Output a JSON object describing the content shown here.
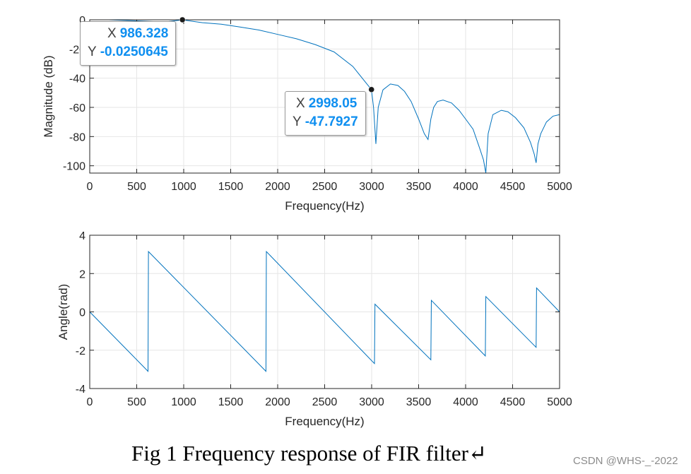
{
  "chart_data": [
    {
      "type": "line",
      "xlabel": "Frequency(Hz)",
      "ylabel": "Magnitude (dB)",
      "xlim": [
        0,
        5000
      ],
      "ylim": [
        -105,
        0
      ],
      "xticks": [
        "0",
        "500",
        "1000",
        "1500",
        "2000",
        "2500",
        "3000",
        "3500",
        "4000",
        "4500",
        "5000"
      ],
      "yticks": [
        "0",
        "-20",
        "-40",
        "-60",
        "-80",
        "-100"
      ],
      "grid": true,
      "color": "#0072bd",
      "series": [
        {
          "x": [
            0,
            200,
            400,
            600,
            800,
            986.328,
            1200,
            1400,
            1600,
            1800,
            2000,
            2200,
            2400,
            2600,
            2800,
            2998.05,
            3020,
            3045,
            3070,
            3120,
            3200,
            3280,
            3350,
            3420,
            3500,
            3560,
            3600,
            3630,
            3660,
            3700,
            3760,
            3850,
            3930,
            4000,
            4080,
            4150,
            4190,
            4215,
            4240,
            4290,
            4380,
            4450,
            4530,
            4620,
            4690,
            4730,
            4750,
            4770,
            4800,
            4860,
            4930,
            5000
          ],
          "y": [
            0,
            0,
            -0.5,
            -1,
            -1.5,
            -0.0250645,
            -2,
            -3,
            -5,
            -7,
            -10,
            -13,
            -17,
            -22,
            -32,
            -47.7927,
            -60,
            -85,
            -60,
            -48,
            -44,
            -45,
            -49,
            -56,
            -68,
            -78,
            -82,
            -68,
            -60,
            -56,
            -55,
            -57,
            -62,
            -68,
            -75,
            -88,
            -96,
            -105,
            -78,
            -65,
            -62,
            -63,
            -67,
            -74,
            -84,
            -92,
            -98,
            -85,
            -78,
            -70,
            -66,
            -65
          ]
        }
      ],
      "datatips": [
        {
          "x_label": "X",
          "x_value": "986.328",
          "y_label": "Y",
          "y_value": "-0.0250645",
          "x": 986.328,
          "y": 0
        },
        {
          "x_label": "X",
          "x_value": "2998.05",
          "y_label": "Y",
          "y_value": "-47.7927",
          "x": 2998.05,
          "y": -47.7927
        }
      ]
    },
    {
      "type": "line",
      "xlabel": "Frequency(Hz)",
      "ylabel": "Angle(rad)",
      "xlim": [
        0,
        5000
      ],
      "ylim": [
        -4,
        4
      ],
      "xticks": [
        "0",
        "500",
        "1000",
        "1500",
        "2000",
        "2500",
        "3000",
        "3500",
        "4000",
        "4500",
        "5000"
      ],
      "yticks": [
        "4",
        "2",
        "0",
        "-2",
        "-4"
      ],
      "grid": true,
      "color": "#0072bd",
      "series": [
        {
          "x": [
            0,
            620,
            625,
            1875,
            1880,
            3030,
            3035,
            3630,
            3635,
            4210,
            4215,
            4750,
            4755,
            5000
          ],
          "y": [
            0,
            -3.1,
            3.15,
            -3.1,
            3.15,
            -2.7,
            0.4,
            -2.5,
            0.6,
            -2.3,
            0.8,
            -1.85,
            1.25,
            0
          ]
        }
      ]
    }
  ],
  "caption": "Fig 1 Frequency response of FIR filter↵",
  "watermark": "CSDN @WHS-_-2022"
}
